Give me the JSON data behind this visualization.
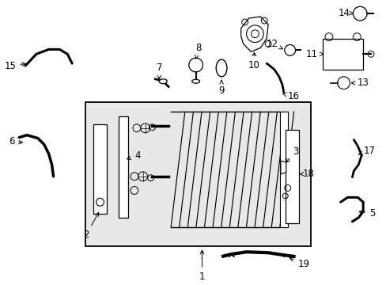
{
  "background_color": "#ffffff",
  "box_bg": "#e8e8e8",
  "line_color": "#000000",
  "label_fontsize": 8.5,
  "lw_part": 1.2,
  "lw_thin": 0.7
}
